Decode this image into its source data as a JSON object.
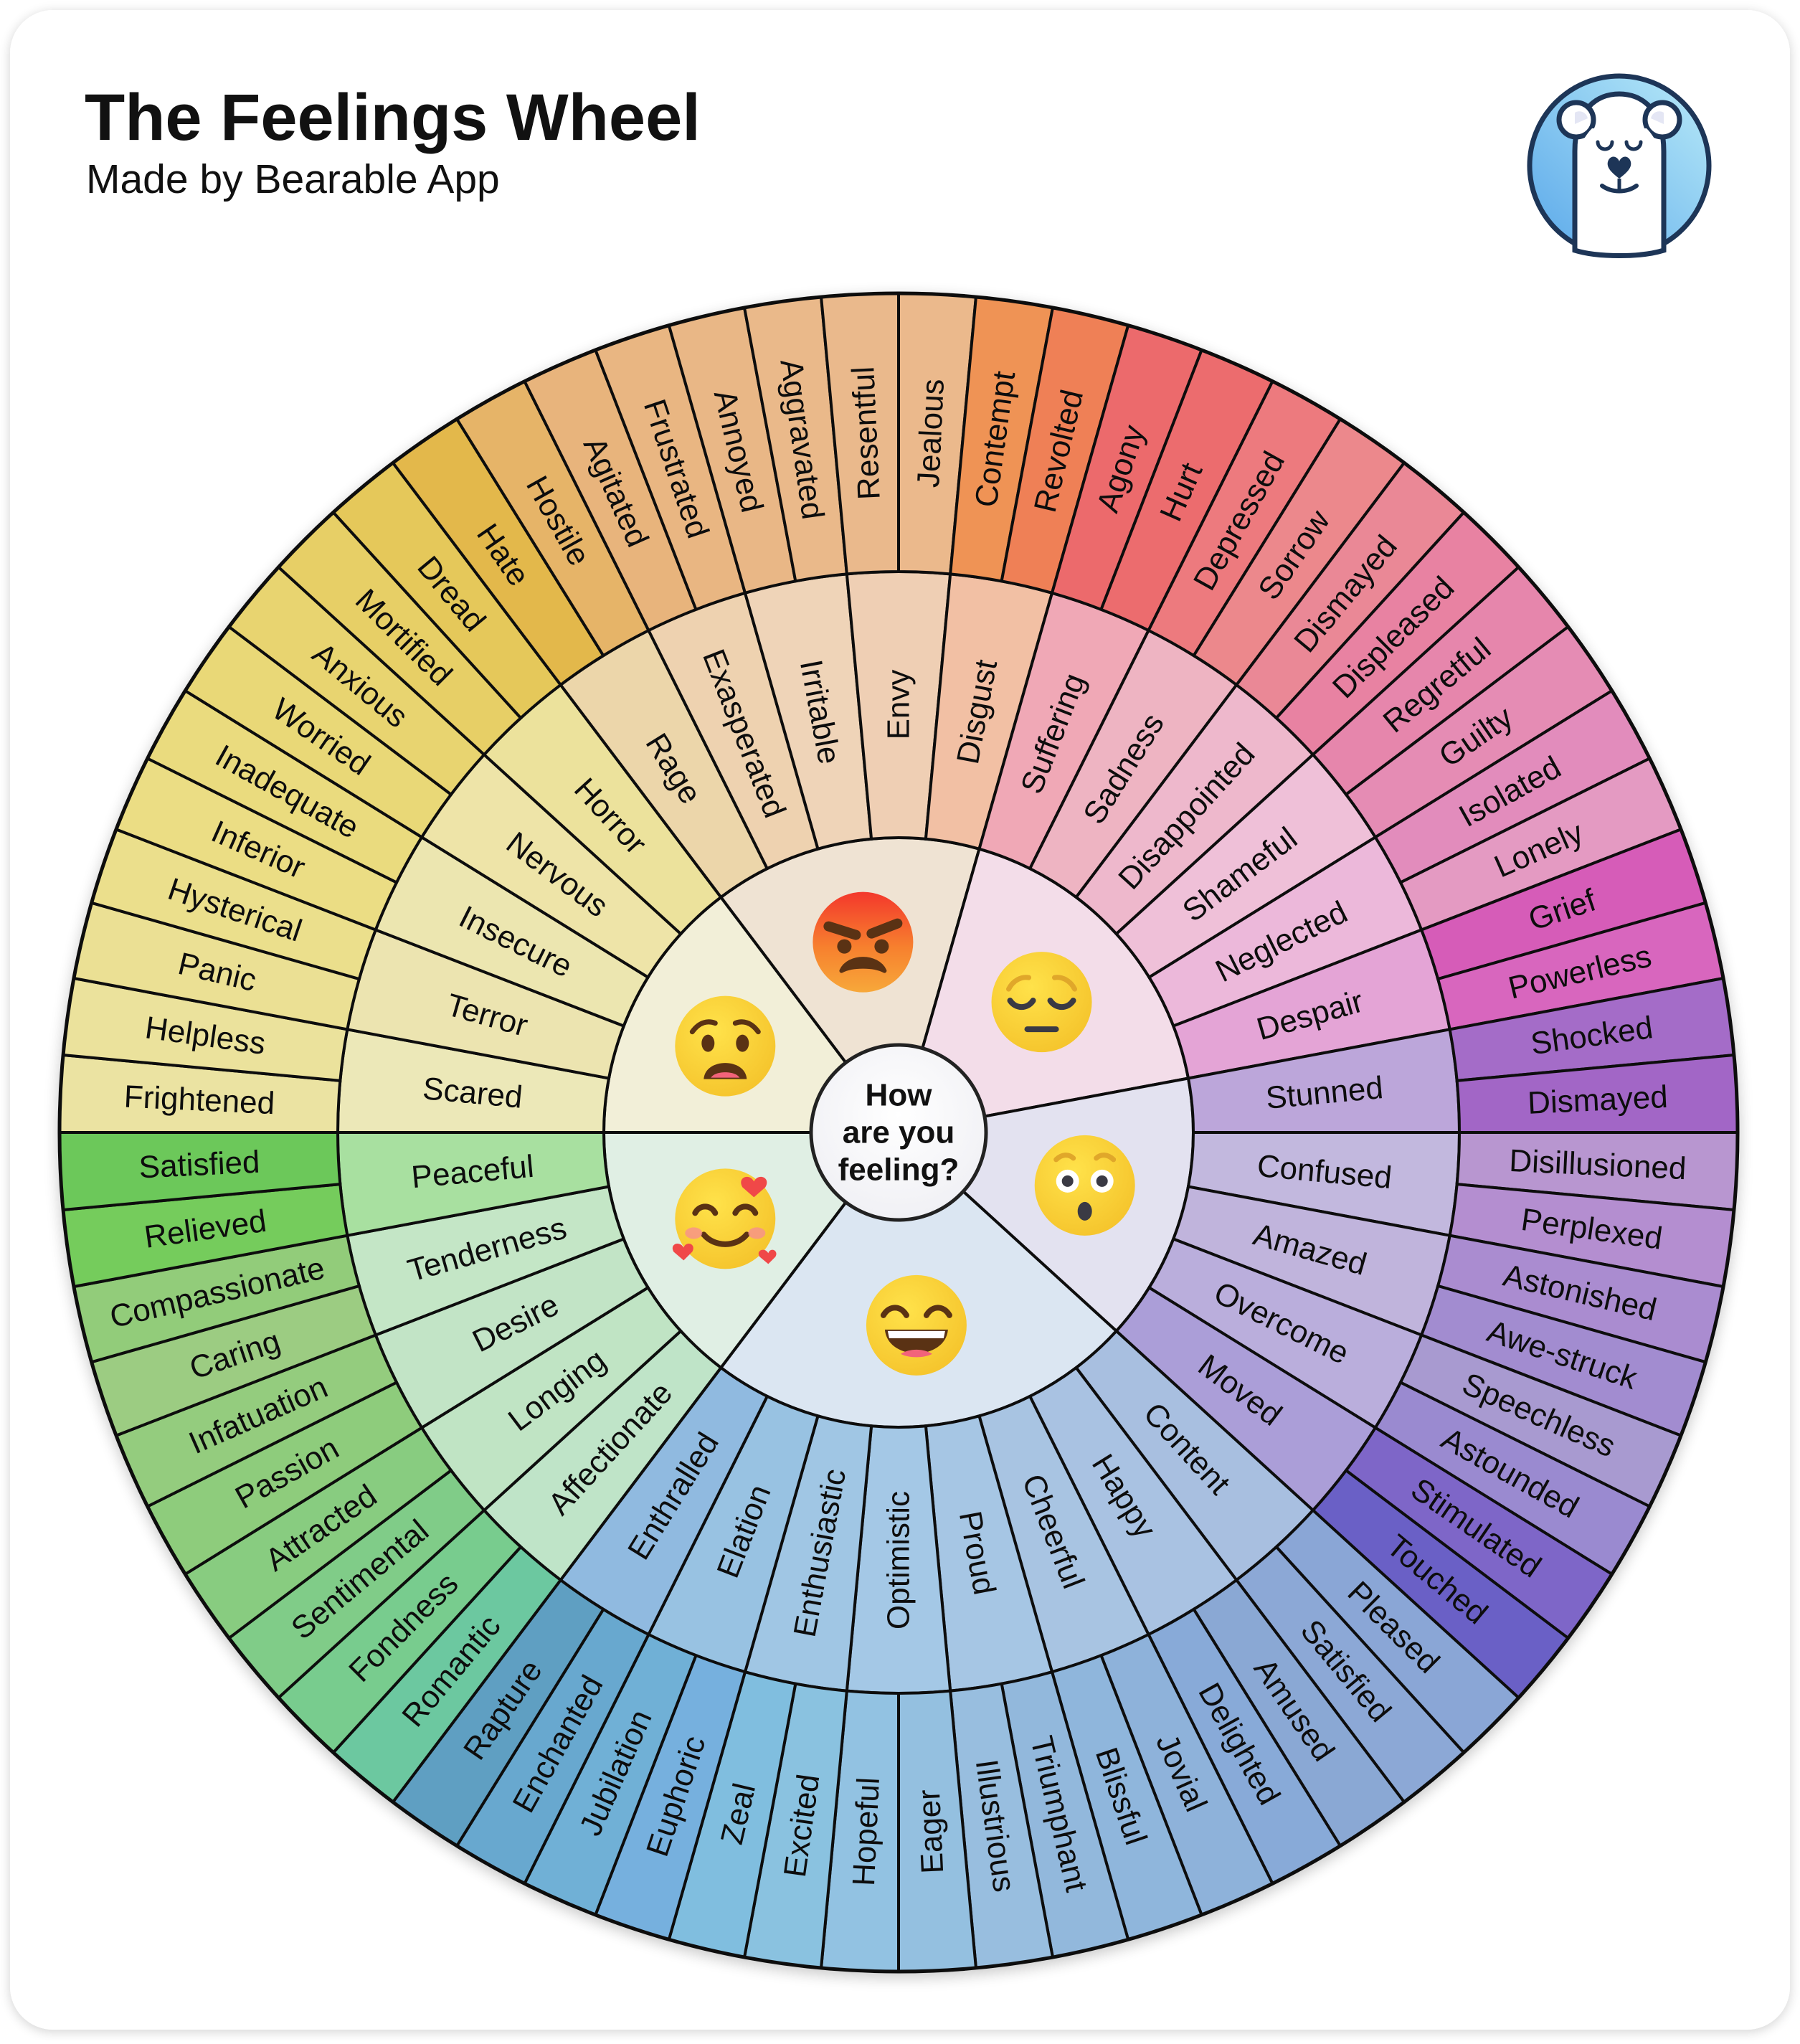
{
  "header": {
    "title": "The Feelings Wheel",
    "subtitle": "Made by Bearable App",
    "logo_icon": "bearable-bear-logo-icon",
    "logo_colors": {
      "circle_light": "#b8eaf8",
      "circle_dark": "#5aa8ea",
      "outline": "#1d3557"
    }
  },
  "center": {
    "lines": [
      "How",
      "are you",
      "feeling?"
    ]
  },
  "line_color": "#111111",
  "sectors": [
    {
      "emoji": "anguished-face-icon",
      "inner_color": "#f2efd8",
      "middle": [
        {
          "label": "Scared",
          "color": "#ece8b8"
        },
        {
          "label": "Terror",
          "color": "#ece4b0"
        },
        {
          "label": "Insecure",
          "color": "#ece6b0"
        },
        {
          "label": "Nervous",
          "color": "#eee4a8"
        },
        {
          "label": "Horror",
          "color": "#ece29c"
        }
      ],
      "outer": [
        {
          "label": "Frightened",
          "color": "#ebe3a2"
        },
        {
          "label": "Helpless",
          "color": "#ebe29c"
        },
        {
          "label": "Panic",
          "color": "#ebe094"
        },
        {
          "label": "Hysterical",
          "color": "#ebdf8c"
        },
        {
          "label": "Inferior",
          "color": "#ebdd84"
        },
        {
          "label": "Inadequate",
          "color": "#eadb7e"
        },
        {
          "label": "Worried",
          "color": "#e9d877"
        },
        {
          "label": "Anxious",
          "color": "#e8d470"
        },
        {
          "label": "Mortified",
          "color": "#e7cf66"
        },
        {
          "label": "Dread",
          "color": "#e5c85a"
        }
      ]
    },
    {
      "emoji": "angry-face-icon",
      "inner_color": "#efe3d3",
      "middle": [
        {
          "label": "Rage",
          "color": "#ecd6aa"
        },
        {
          "label": "Exasperated",
          "color": "#eed2b0"
        },
        {
          "label": "Irritable",
          "color": "#efd4b8"
        },
        {
          "label": "Envy",
          "color": "#efcfb4"
        },
        {
          "label": "Disgust",
          "color": "#f2c0a4"
        }
      ],
      "outer": [
        {
          "label": "Hate",
          "color": "#e3b84c"
        },
        {
          "label": "Hostile",
          "color": "#e6b468"
        },
        {
          "label": "Agitated",
          "color": "#e8b47c"
        },
        {
          "label": "Frustrated",
          "color": "#e9b682"
        },
        {
          "label": "Annoyed",
          "color": "#e9b786"
        },
        {
          "label": "Aggravated",
          "color": "#eab98a"
        },
        {
          "label": "Resentful",
          "color": "#eab98c"
        },
        {
          "label": "Jealous",
          "color": "#ebb98c"
        },
        {
          "label": "Contempt",
          "color": "#ef9354"
        },
        {
          "label": "Revolted",
          "color": "#ef8056"
        }
      ]
    },
    {
      "emoji": "pensive-face-icon",
      "inner_color": "#f3dde9",
      "middle": [
        {
          "label": "Suffering",
          "color": "#f0a8b6"
        },
        {
          "label": "Sadness",
          "color": "#eeb4c2"
        },
        {
          "label": "Disappointed",
          "color": "#eeb8cc"
        },
        {
          "label": "Shameful",
          "color": "#efc0d8"
        },
        {
          "label": "Neglected",
          "color": "#ecb8da"
        },
        {
          "label": "Despair",
          "color": "#e4a4d6"
        }
      ],
      "outer": [
        {
          "label": "Agony",
          "color": "#ec6a6c"
        },
        {
          "label": "Hurt",
          "color": "#ec6c6e"
        },
        {
          "label": "Depressed",
          "color": "#ed7a7e"
        },
        {
          "label": "Sorrow",
          "color": "#ec888c"
        },
        {
          "label": "Dismayed",
          "color": "#ea8896"
        },
        {
          "label": "Displeased",
          "color": "#e882a2"
        },
        {
          "label": "Regretful",
          "color": "#e686ac"
        },
        {
          "label": "Guilty",
          "color": "#e58cb4"
        },
        {
          "label": "Isolated",
          "color": "#e28cbc"
        },
        {
          "label": "Lonely",
          "color": "#e49ac2"
        },
        {
          "label": "Grief",
          "color": "#d65cb8"
        },
        {
          "label": "Powerless",
          "color": "#d866be"
        }
      ]
    },
    {
      "emoji": "astonished-face-icon",
      "inner_color": "#e3e2f0",
      "middle": [
        {
          "label": "Stunned",
          "color": "#bca6da"
        },
        {
          "label": "Confused",
          "color": "#c2b8de"
        },
        {
          "label": "Amazed",
          "color": "#c0b4dc"
        },
        {
          "label": "Overcome",
          "color": "#baaedc"
        },
        {
          "label": "Moved",
          "color": "#ab9ed8"
        }
      ],
      "outer": [
        {
          "label": "Shocked",
          "color": "#a46cc8"
        },
        {
          "label": "Dismayed",
          "color": "#a266c6"
        },
        {
          "label": "Disillusioned",
          "color": "#b896d0"
        },
        {
          "label": "Perplexed",
          "color": "#b48ed0"
        },
        {
          "label": "Astonished",
          "color": "#aa8cd0"
        },
        {
          "label": "Awe-struck",
          "color": "#a28cd0"
        },
        {
          "label": "Speechless",
          "color": "#a89ad0"
        },
        {
          "label": "Astounded",
          "color": "#9a8ad0"
        },
        {
          "label": "Stimulated",
          "color": "#7e66c8"
        },
        {
          "label": "Touched",
          "color": "#6a60c6"
        }
      ]
    },
    {
      "emoji": "grinning-squinting-face-icon",
      "inner_color": "#dbe6f2",
      "middle": [
        {
          "label": "Content",
          "color": "#a8bfe0"
        },
        {
          "label": "Happy",
          "color": "#a9c2e2"
        },
        {
          "label": "Cheerful",
          "color": "#a8c4e2"
        },
        {
          "label": "Proud",
          "color": "#a6c6e4"
        },
        {
          "label": "Optimistic",
          "color": "#a4c8e6"
        },
        {
          "label": "Enthusiastic",
          "color": "#a0c6e4"
        },
        {
          "label": "Elation",
          "color": "#98c2e2"
        },
        {
          "label": "Enthralled",
          "color": "#90bae0"
        }
      ],
      "outer": [
        {
          "label": "Pleased",
          "color": "#8aa6d6"
        },
        {
          "label": "Satisfied",
          "color": "#8ca8d6"
        },
        {
          "label": "Amused",
          "color": "#8aa8d4"
        },
        {
          "label": "Delighted",
          "color": "#88aad8"
        },
        {
          "label": "Jovial",
          "color": "#8eb2da"
        },
        {
          "label": "Blissful",
          "color": "#8fb6dc"
        },
        {
          "label": "Triumphant",
          "color": "#92b8dc"
        },
        {
          "label": "Illustrious",
          "color": "#98bedf"
        },
        {
          "label": "Eager",
          "color": "#94c0e0"
        },
        {
          "label": "Hopeful",
          "color": "#92c2e2"
        },
        {
          "label": "Excited",
          "color": "#8ac2e0"
        },
        {
          "label": "Zeal",
          "color": "#80bedf"
        },
        {
          "label": "Euphoric",
          "color": "#76b0de"
        },
        {
          "label": "Jubilation",
          "color": "#6fb0d6"
        },
        {
          "label": "Enchanted",
          "color": "#68a8cf"
        },
        {
          "label": "Rapture",
          "color": "#5f9fc2"
        }
      ]
    },
    {
      "emoji": "smiling-face-with-hearts-icon",
      "inner_color": "#e0efe4",
      "middle": [
        {
          "label": "Affectionate",
          "color": "#bfe4c8"
        },
        {
          "label": "Longing",
          "color": "#c0e4c4"
        },
        {
          "label": "Desire",
          "color": "#c2e4c6"
        },
        {
          "label": "Tenderness",
          "color": "#c4e6c6"
        },
        {
          "label": "Peaceful",
          "color": "#a8e0a0"
        }
      ],
      "outer": [
        {
          "label": "Romantic",
          "color": "#6cc8a0"
        },
        {
          "label": "Fondness",
          "color": "#78cc8e"
        },
        {
          "label": "Sentimental",
          "color": "#80cc88"
        },
        {
          "label": "Attracted",
          "color": "#88cc80"
        },
        {
          "label": "Passion",
          "color": "#8ecc7c"
        },
        {
          "label": "Infatuation",
          "color": "#94cc7e"
        },
        {
          "label": "Caring",
          "color": "#9ccc82"
        },
        {
          "label": "Compassionate",
          "color": "#92cc7a"
        },
        {
          "label": "Relieved",
          "color": "#74cc5c"
        },
        {
          "label": "Satisfied",
          "color": "#6cc85a"
        }
      ]
    }
  ]
}
